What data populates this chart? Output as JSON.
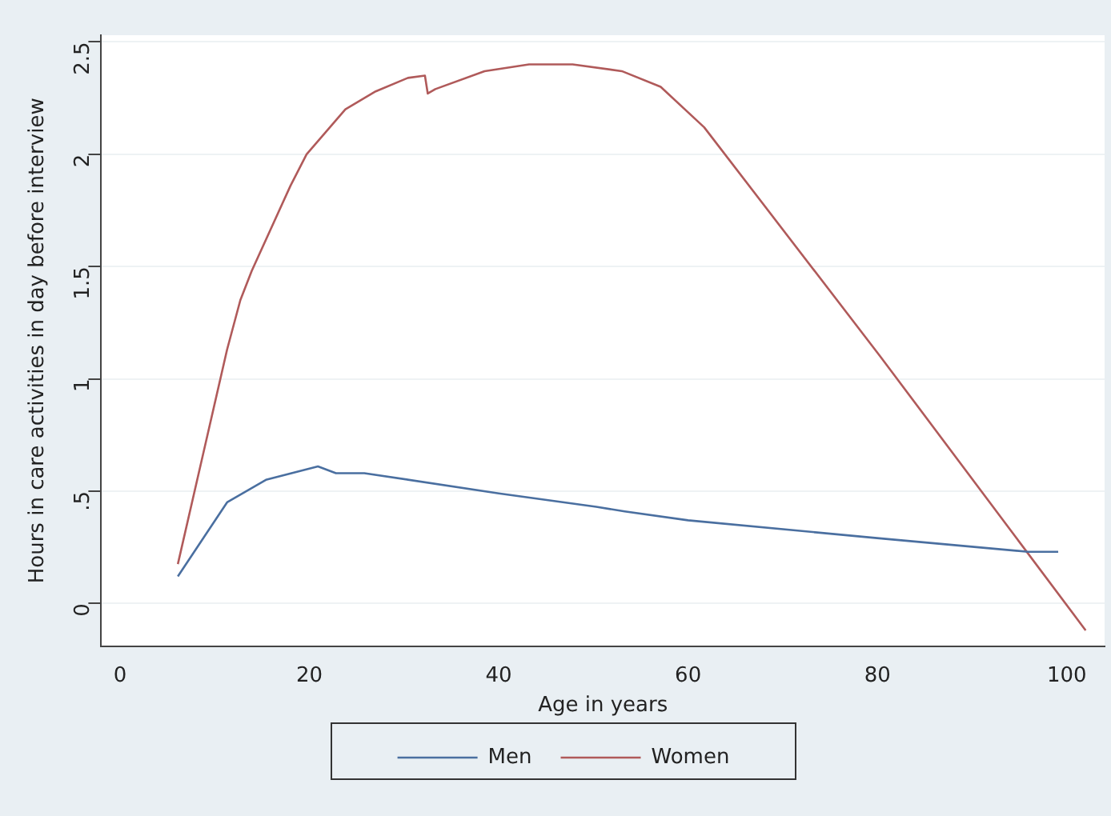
{
  "chart_data": {
    "type": "line",
    "xlabel": "Age in years",
    "ylabel": "Hours in care activities in day before interview",
    "xlim": [
      -2,
      104
    ],
    "xticks": [
      0,
      20,
      40,
      60,
      80,
      100
    ],
    "ylim": [
      -0.19,
      2.53
    ],
    "yticks": [
      0,
      {
        "value": 0.5,
        "label": ".5"
      },
      1,
      1.5,
      2,
      2.5
    ],
    "grid": "y",
    "legend": "bottom",
    "marker": "none",
    "line_style": "solid",
    "series": [
      {
        "name": "Men",
        "color": "#4a6fa0",
        "x": [
          6.1,
          11.3,
          15.4,
          20.9,
          22.8,
          25.8,
          40,
          50.3,
          53.3,
          60,
          80.2,
          95.9,
          99.1
        ],
        "values": [
          0.12,
          0.45,
          0.55,
          0.61,
          0.58,
          0.58,
          0.49,
          0.43,
          0.41,
          0.37,
          0.29,
          0.23,
          0.23
        ]
      },
      {
        "name": "Women",
        "color": "#b05a5a",
        "x": [
          6.1,
          11.3,
          12.7,
          13.9,
          18.0,
          19.7,
          23.8,
          27.0,
          30.4,
          32.2,
          32.5,
          33.3,
          38.5,
          43.2,
          47.8,
          53.0,
          57.1,
          61.7,
          80.3,
          102
        ],
        "values": [
          0.175,
          1.13,
          1.35,
          1.48,
          1.86,
          2.0,
          2.2,
          2.28,
          2.34,
          2.35,
          2.27,
          2.29,
          2.37,
          2.4,
          2.4,
          2.37,
          2.3,
          2.12,
          1.1,
          -0.12
        ]
      }
    ]
  }
}
